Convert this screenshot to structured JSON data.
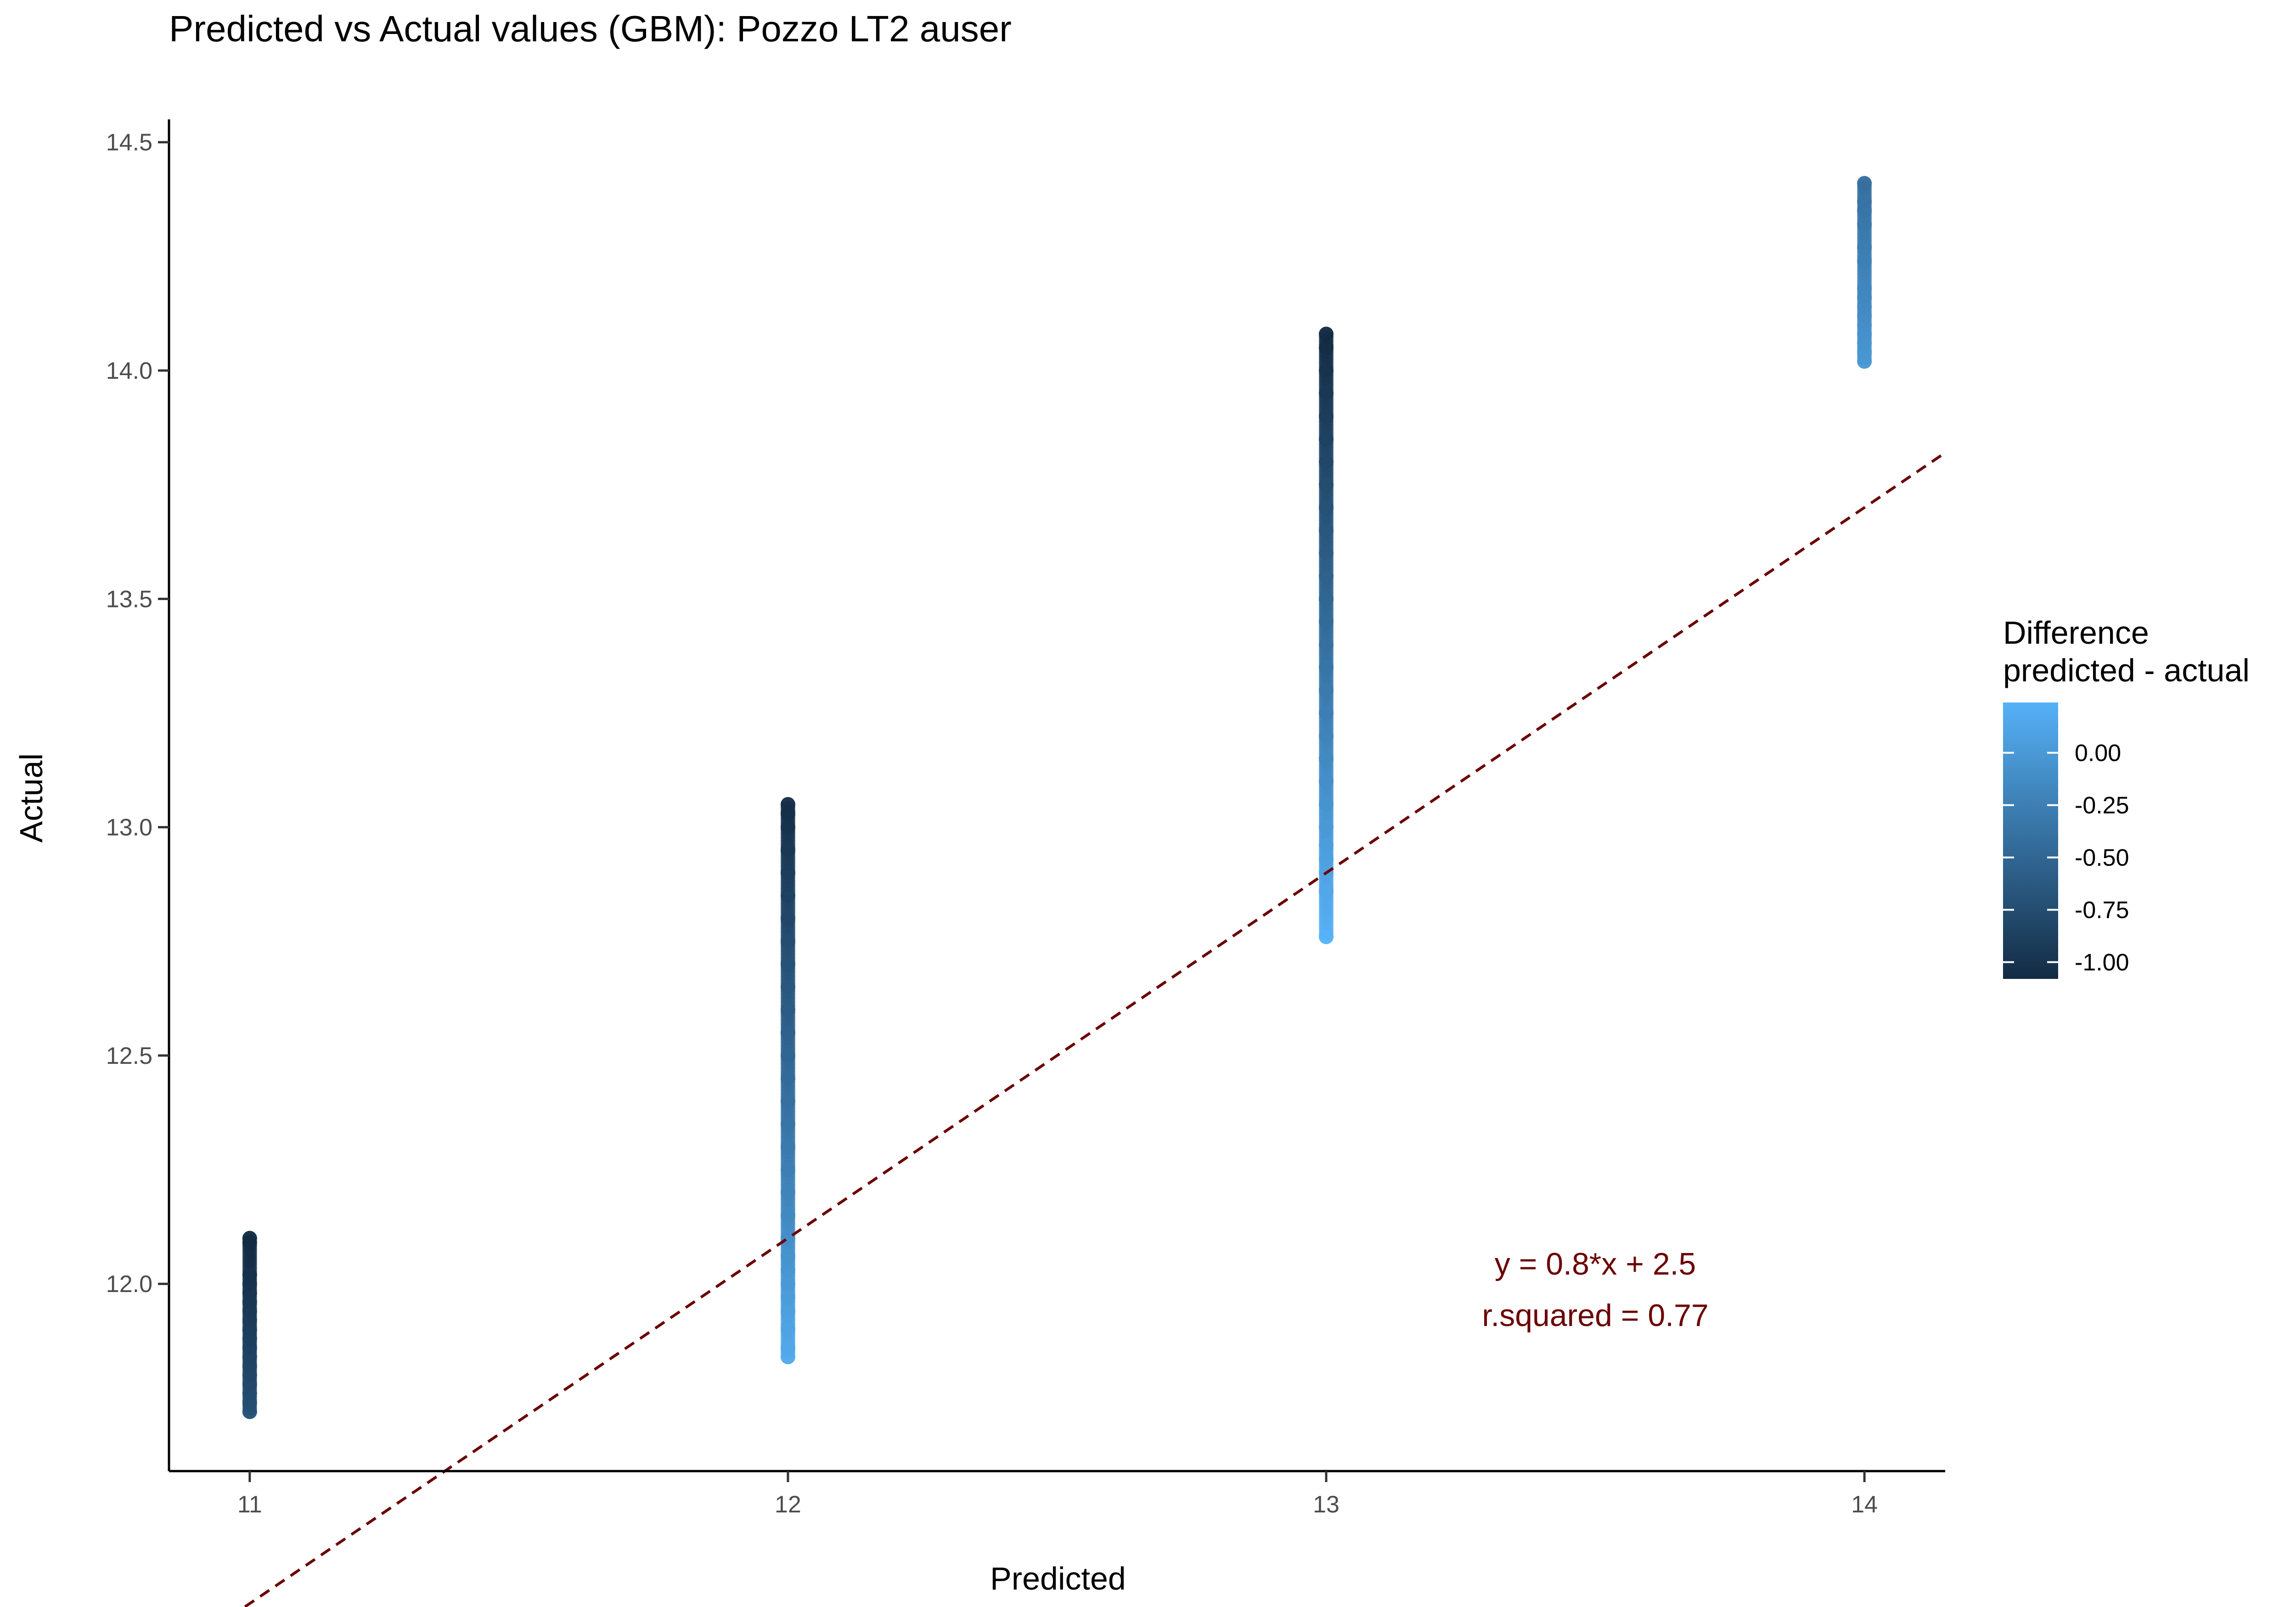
{
  "chart_data": {
    "type": "scatter",
    "title": "Predicted vs Actual values (GBM): Pozzo LT2 auser",
    "xlabel": "Predicted",
    "ylabel": "Actual",
    "xlim": [
      10.85,
      14.15
    ],
    "ylim": [
      11.59,
      14.55
    ],
    "x_ticks": [
      11,
      12,
      13,
      14
    ],
    "x_tick_labels": [
      "11",
      "12",
      "13",
      "14"
    ],
    "y_ticks": [
      12.0,
      12.5,
      13.0,
      13.5,
      14.0,
      14.5
    ],
    "y_tick_labels": [
      "12.0",
      "12.5",
      "13.0",
      "13.5",
      "14.0",
      "14.5"
    ],
    "grid": false,
    "legend": {
      "title": "Difference\npredicted - actual",
      "title_lines": [
        "Difference",
        "predicted - actual"
      ],
      "placement": "right",
      "range": [
        -1.08,
        0.24
      ],
      "ticks": [
        0.0,
        -0.25,
        -0.5,
        -0.75,
        -1.0
      ],
      "tick_labels": [
        "0.00",
        "-0.25",
        "-0.50",
        "-0.75",
        "-1.00"
      ],
      "color_low": "#132B43",
      "color_high": "#56B1F7"
    },
    "fit_line": {
      "slope": 0.8,
      "intercept": 2.5,
      "x_range": [
        10.85,
        14.15
      ],
      "color": "#6B0000",
      "style": "dashed"
    },
    "annotation": {
      "lines": [
        "y = 0.8*x + 2.5",
        "r.squared = 0.77"
      ],
      "x": 13.5,
      "y": 11.98,
      "color": "#6B0000"
    },
    "columns": [
      {
        "x": 11,
        "y_min": 11.72,
        "y_max": 12.1,
        "samples": [
          11.72,
          11.74,
          11.76,
          11.78,
          11.8,
          11.82,
          11.84,
          11.86,
          11.88,
          11.9,
          11.92,
          11.94,
          11.96,
          11.98,
          12.0,
          12.02,
          12.09,
          12.1
        ]
      },
      {
        "x": 12,
        "y_min": 11.84,
        "y_max": 13.05,
        "samples": [
          11.84,
          11.86,
          11.9,
          11.94,
          11.97,
          12.0,
          12.03,
          12.06,
          12.1,
          12.15,
          12.2,
          12.25,
          12.3,
          12.35,
          12.4,
          12.45,
          12.5,
          12.55,
          12.6,
          12.65,
          12.7,
          12.75,
          12.8,
          12.85,
          12.9,
          12.95,
          13.0,
          13.03,
          13.05
        ]
      },
      {
        "x": 13,
        "y_min": 12.76,
        "y_max": 14.08,
        "samples": [
          12.76,
          12.86,
          12.9,
          12.93,
          12.96,
          13.0,
          13.05,
          13.1,
          13.15,
          13.2,
          13.25,
          13.3,
          13.35,
          13.4,
          13.45,
          13.5,
          13.55,
          13.6,
          13.65,
          13.7,
          13.75,
          13.8,
          13.85,
          13.9,
          13.95,
          14.0,
          14.05,
          14.08
        ]
      },
      {
        "x": 14,
        "y_min": 14.02,
        "y_max": 14.41,
        "samples": [
          14.02,
          14.04,
          14.06,
          14.08,
          14.1,
          14.12,
          14.14,
          14.16,
          14.18,
          14.24,
          14.27,
          14.32,
          14.35,
          14.37,
          14.41
        ]
      }
    ]
  }
}
